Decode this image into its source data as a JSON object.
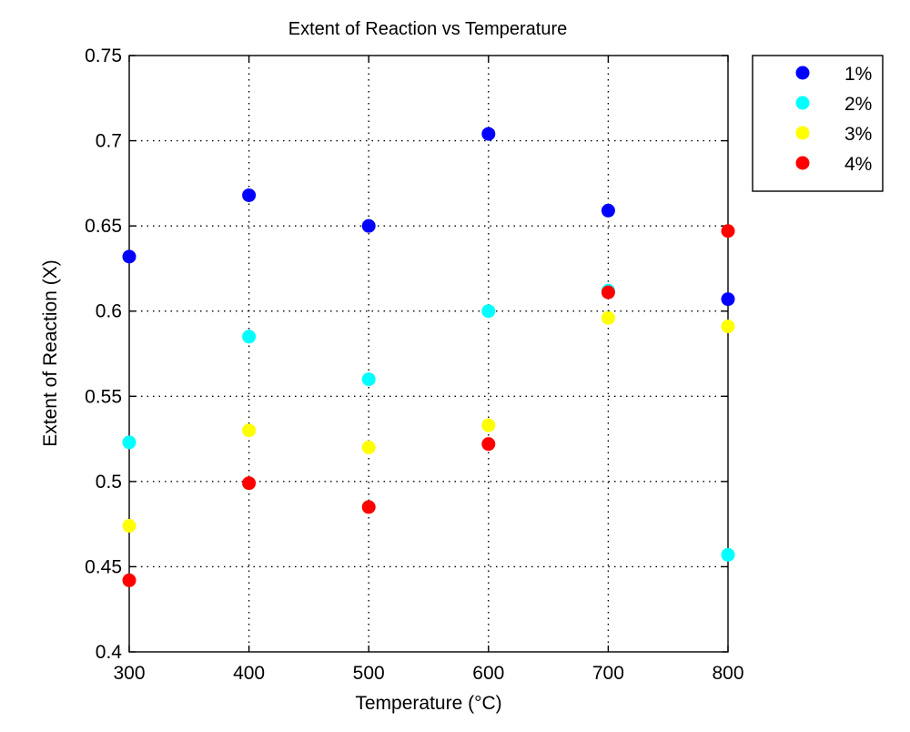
{
  "chart_data": {
    "type": "scatter",
    "title": "Extent of Reaction vs Temperature",
    "xlabel": "Temperature (°C)",
    "ylabel": "Extent of Reaction (X)",
    "xlim": [
      300,
      800
    ],
    "ylim": [
      0.4,
      0.75
    ],
    "xticks": [
      300,
      400,
      500,
      600,
      700,
      800
    ],
    "yticks": [
      0.4,
      0.45,
      0.5,
      0.55,
      0.6,
      0.65,
      0.7,
      0.75
    ],
    "xtick_labels": [
      "300",
      "400",
      "500",
      "600",
      "700",
      "800"
    ],
    "ytick_labels": [
      "0.4",
      "0.45",
      "0.5",
      "0.55",
      "0.6",
      "0.65",
      "0.7",
      "0.75"
    ],
    "grid": true,
    "legend_position": "outside-top-right",
    "x": [
      300,
      400,
      500,
      600,
      700,
      800
    ],
    "series": [
      {
        "name": "1%",
        "color": "#0000ff",
        "values": [
          0.632,
          0.668,
          0.65,
          0.704,
          0.659,
          0.607
        ]
      },
      {
        "name": "2%",
        "color": "#00ffff",
        "values": [
          0.523,
          0.585,
          0.56,
          0.6,
          0.612,
          0.457
        ]
      },
      {
        "name": "3%",
        "color": "#ffff00",
        "values": [
          0.474,
          0.53,
          0.52,
          0.533,
          0.596,
          0.591
        ]
      },
      {
        "name": "4%",
        "color": "#ff0000",
        "values": [
          0.442,
          0.499,
          0.485,
          0.522,
          0.611,
          0.647
        ]
      }
    ]
  }
}
